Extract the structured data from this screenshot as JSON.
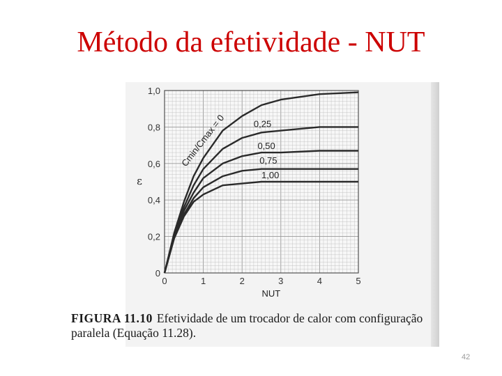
{
  "slide": {
    "title": "Método da efetividade - NUT",
    "page_number": "42"
  },
  "figure": {
    "caption_label": "FIGURA 11.10",
    "caption_text": "Efetividade de um trocador de calor com configuração paralela (Equação 11.28)."
  },
  "colors": {
    "title": "#cc0000",
    "curves": "#2a2a2a",
    "grid": "#bbbbbb",
    "background": "#f3f3f3"
  },
  "chart_data": {
    "type": "line",
    "xlabel": "NUT",
    "ylabel": "ε",
    "xlim": [
      0,
      5
    ],
    "ylim": [
      0,
      1.0
    ],
    "x_ticks": [
      "0",
      "1",
      "2",
      "3",
      "4",
      "5"
    ],
    "y_ticks": [
      "0",
      "0,2",
      "0,4",
      "0,6",
      "0,8",
      "1,0"
    ],
    "grid": true,
    "x": [
      0,
      0.25,
      0.5,
      0.75,
      1,
      1.5,
      2,
      2.5,
      3,
      4,
      5
    ],
    "series": [
      {
        "name": "Cmin/Cmax = 0",
        "label_text": "Cmin/Cmax = 0",
        "values": [
          0,
          0.22,
          0.39,
          0.53,
          0.63,
          0.78,
          0.86,
          0.92,
          0.95,
          0.98,
          0.99
        ]
      },
      {
        "name": "0,25",
        "label_text": "0,25",
        "values": [
          0,
          0.21,
          0.36,
          0.48,
          0.57,
          0.68,
          0.74,
          0.77,
          0.78,
          0.8,
          0.8
        ]
      },
      {
        "name": "0,50",
        "label_text": "0,50",
        "values": [
          0,
          0.2,
          0.34,
          0.44,
          0.52,
          0.6,
          0.64,
          0.66,
          0.66,
          0.67,
          0.67
        ]
      },
      {
        "name": "0,75",
        "label_text": "0,75",
        "values": [
          0,
          0.2,
          0.32,
          0.41,
          0.47,
          0.53,
          0.56,
          0.57,
          0.57,
          0.57,
          0.57
        ]
      },
      {
        "name": "1,00",
        "label_text": "1,00",
        "values": [
          0,
          0.19,
          0.31,
          0.39,
          0.43,
          0.48,
          0.49,
          0.5,
          0.5,
          0.5,
          0.5
        ]
      }
    ]
  }
}
